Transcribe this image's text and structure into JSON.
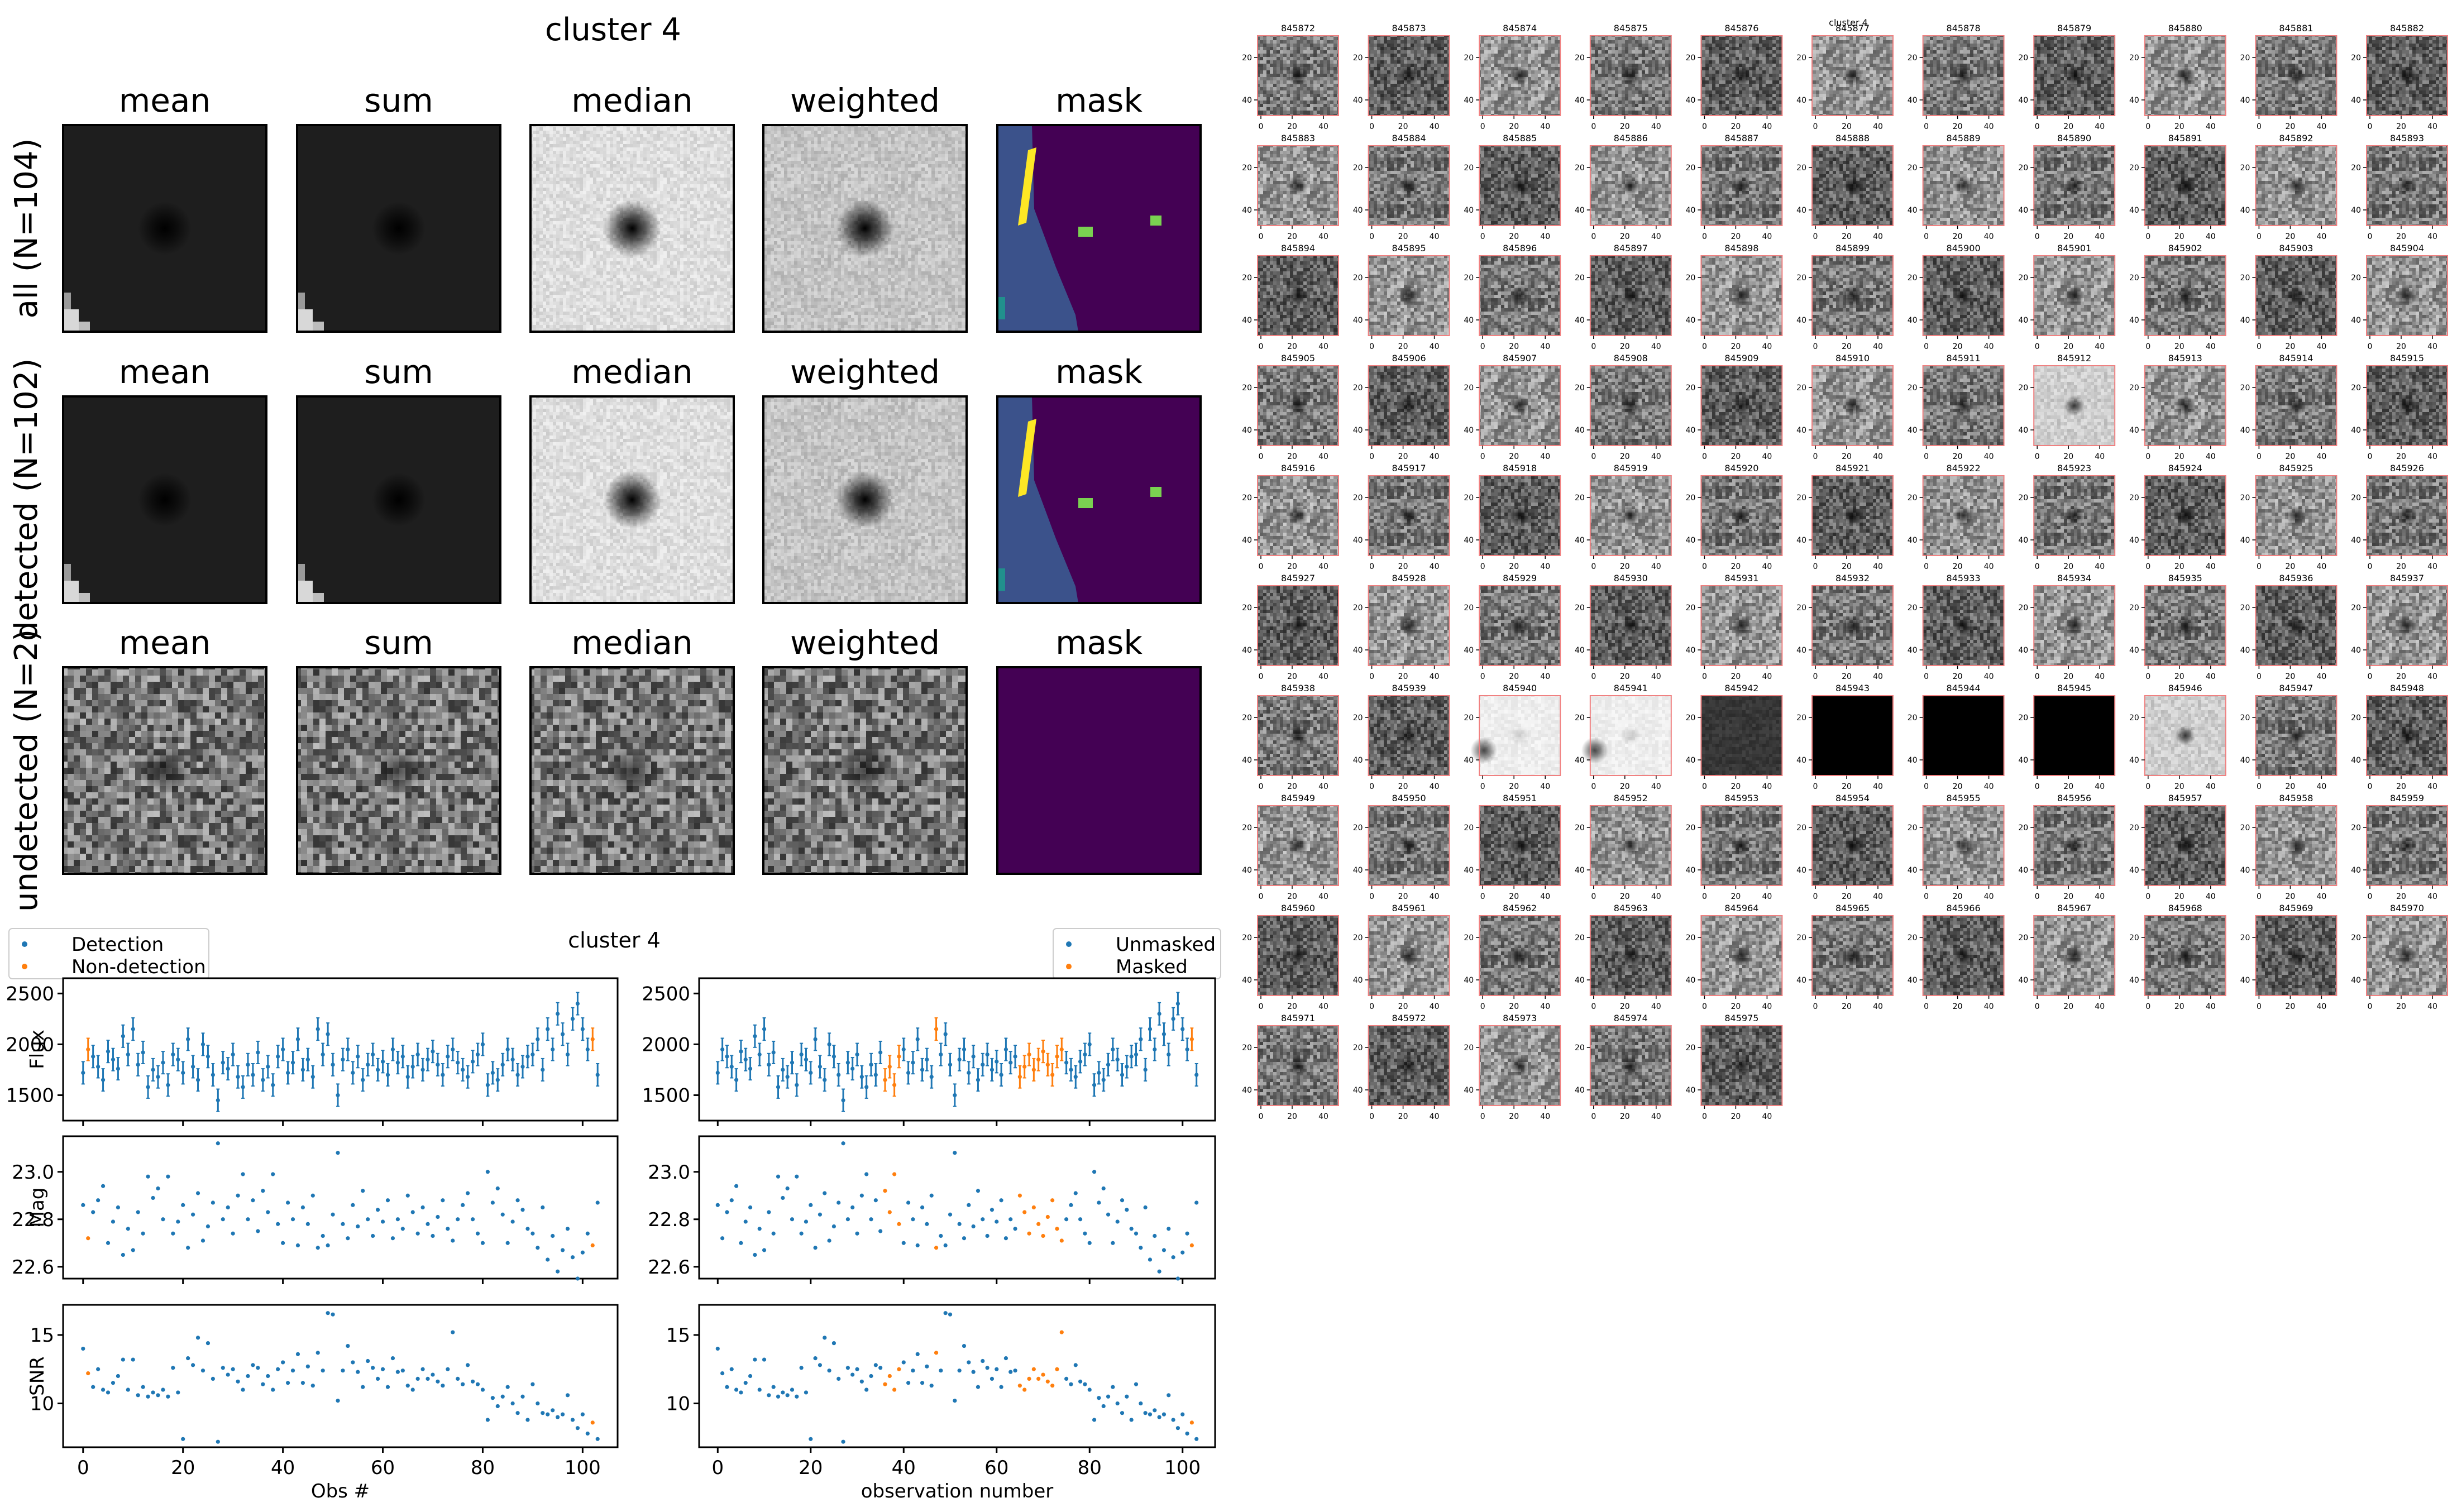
{
  "stamps": {
    "title": "cluster 4",
    "columns": [
      "mean",
      "sum",
      "median",
      "weighted",
      "mask"
    ],
    "rows": [
      {
        "label": "all (N=104)",
        "kinds": [
          "dark",
          "dark",
          "light",
          "mid",
          "mask"
        ]
      },
      {
        "label": "detected (N=102)",
        "kinds": [
          "dark",
          "dark",
          "light",
          "mid",
          "mask"
        ]
      },
      {
        "label": "undetected (N=2)",
        "kinds": [
          "noise",
          "noise",
          "noise",
          "noise",
          "maskempty"
        ]
      }
    ],
    "colors": {
      "mask_bg": "#440154",
      "mask_region": "#3b528b",
      "mask_edge": "#21908d",
      "mask_streak": "#fde725",
      "mask_spot": "#7ad151"
    }
  },
  "lightcurve": {
    "title": "cluster 4",
    "legend_left": [
      "Detection",
      "Non-detection"
    ],
    "legend_right": [
      "Unmasked",
      "Masked"
    ],
    "colors": {
      "primary": "#1f77b4",
      "secondary": "#ff7f0e"
    },
    "ylabels": [
      "Flux",
      "Mag",
      "SNR"
    ],
    "xlabel_left": "Obs #",
    "xlabel_right": "observation number",
    "yticks": {
      "flux": [
        "1500",
        "2000",
        "2500"
      ],
      "mag": [
        "22.6",
        "22.8",
        "23.0"
      ],
      "snr": [
        "10",
        "15"
      ]
    },
    "xticks": [
      "0",
      "20",
      "40",
      "60",
      "80",
      "100"
    ]
  },
  "chart_data": [
    {
      "type": "scatter",
      "title": "cluster 4",
      "x_range": [
        0,
        103
      ],
      "xlabel": "Obs #",
      "panels": [
        {
          "ylabel": "Flux",
          "ylim": [
            1250,
            2650
          ]
        },
        {
          "ylabel": "Mag",
          "ylim": [
            23.15,
            22.55
          ],
          "inverted": true
        },
        {
          "ylabel": "SNR",
          "ylim": [
            6.8,
            17.2
          ]
        }
      ],
      "series": [
        {
          "name": "Detection",
          "color": "#1f77b4",
          "x": "0-103 except 1 and 102"
        },
        {
          "name": "Non-detection",
          "color": "#ff7f0e",
          "x": [
            1,
            102
          ]
        }
      ],
      "flux": [
        1720,
        1950,
        1880,
        1780,
        1650,
        1930,
        1850,
        1760,
        2080,
        1900,
        2150,
        1800,
        1920,
        1580,
        1750,
        1680,
        1820,
        1600,
        1900,
        1850,
        1720,
        2050,
        1780,
        1650,
        2000,
        1880,
        1700,
        1450,
        1820,
        1760,
        1900,
        1680,
        1580,
        1800,
        1700,
        1920,
        1650,
        1780,
        1600,
        1880,
        1950,
        1720,
        1820,
        2050,
        1750,
        1850,
        1680,
        2150,
        1900,
        2100,
        1800,
        1500,
        1850,
        1950,
        1720,
        1880,
        1650,
        1800,
        1900,
        1750,
        1830,
        1700,
        1950,
        1820,
        1880,
        1680,
        1780,
        1900,
        1750,
        1850,
        1930,
        1800,
        1700,
        1880,
        1950,
        1820,
        1750,
        1680,
        1830,
        1900,
        2000,
        1600,
        1720,
        1650,
        1800,
        1950,
        1850,
        1700,
        1780,
        1880,
        1900,
        2050,
        1750,
        2150,
        1950,
        2300,
        2100,
        1900,
        2250,
        2400,
        2150,
        1950,
        2050,
        1700
      ],
      "mag": [
        22.86,
        22.72,
        22.83,
        22.88,
        22.94,
        22.7,
        22.79,
        22.85,
        22.65,
        22.76,
        22.67,
        22.83,
        22.74,
        22.98,
        22.89,
        22.93,
        22.8,
        22.98,
        22.74,
        22.79,
        22.86,
        22.68,
        22.82,
        22.91,
        22.71,
        22.77,
        22.87,
        23.12,
        22.8,
        22.85,
        22.74,
        22.9,
        22.99,
        22.8,
        22.88,
        22.75,
        22.92,
        22.83,
        22.99,
        22.78,
        22.7,
        22.87,
        22.8,
        22.69,
        22.85,
        22.78,
        22.9,
        22.68,
        22.73,
        22.69,
        22.82,
        23.08,
        22.78,
        22.72,
        22.86,
        22.77,
        22.92,
        22.8,
        22.73,
        22.84,
        22.79,
        22.88,
        22.72,
        22.8,
        22.76,
        22.9,
        22.83,
        22.74,
        22.85,
        22.78,
        22.73,
        22.81,
        22.88,
        22.76,
        22.71,
        22.8,
        22.86,
        22.91,
        22.8,
        22.74,
        22.7,
        23.0,
        22.87,
        22.93,
        22.82,
        22.7,
        22.79,
        22.88,
        22.84,
        22.76,
        22.74,
        22.68,
        22.85,
        22.63,
        22.73,
        22.58,
        22.67,
        22.76,
        22.64,
        22.55,
        22.66,
        22.74,
        22.69,
        22.87
      ],
      "snr": [
        14.0,
        12.2,
        11.2,
        12.5,
        11.0,
        10.8,
        11.5,
        12.0,
        13.2,
        11.0,
        13.2,
        10.6,
        11.2,
        10.5,
        10.8,
        10.6,
        11.0,
        10.5,
        12.6,
        10.8,
        7.4,
        13.3,
        12.8,
        14.8,
        12.4,
        14.4,
        11.8,
        7.2,
        12.6,
        12.1,
        12.5,
        11.6,
        11.0,
        12.0,
        12.8,
        12.6,
        11.4,
        12.0,
        11.0,
        12.5,
        13.0,
        11.5,
        12.4,
        13.6,
        11.5,
        12.7,
        11.3,
        13.7,
        12.4,
        16.6,
        16.5,
        10.2,
        12.4,
        14.2,
        13.0,
        12.3,
        11.2,
        13.1,
        12.6,
        11.8,
        12.5,
        11.2,
        13.3,
        12.3,
        12.4,
        11.3,
        11.0,
        11.8,
        12.5,
        11.8,
        12.1,
        11.6,
        11.3,
        12.5,
        15.2,
        11.8,
        11.4,
        12.8,
        11.6,
        11.4,
        11.0,
        8.8,
        10.4,
        9.8,
        10.5,
        11.2,
        10.0,
        9.3,
        10.5,
        8.8,
        11.4,
        10.0,
        9.3,
        9.2,
        9.5,
        9.0,
        9.2,
        10.6,
        8.8,
        8.2,
        9.2,
        7.8,
        8.6,
        7.4
      ]
    },
    {
      "type": "scatter",
      "title": "cluster 4",
      "x_range": [
        0,
        103
      ],
      "xlabel": "observation number",
      "series": [
        {
          "name": "Unmasked",
          "color": "#1f77b4"
        },
        {
          "name": "Masked",
          "color": "#ff7f0e",
          "x": [
            36,
            37,
            38,
            39,
            47,
            65,
            66,
            67,
            68,
            69,
            70,
            71,
            72,
            73,
            74,
            102
          ]
        }
      ],
      "note_values": "same flux/mag/snr values as panel group 1"
    }
  ],
  "thumbs": {
    "title": "cluster 4",
    "ids": [
      "845872",
      "845873",
      "845874",
      "845875",
      "845876",
      "845877",
      "845878",
      "845879",
      "845880",
      "845881",
      "845882",
      "845883",
      "845884",
      "845885",
      "845886",
      "845887",
      "845888",
      "845889",
      "845890",
      "845891",
      "845892",
      "845893",
      "845894",
      "845895",
      "845896",
      "845897",
      "845898",
      "845899",
      "845900",
      "845901",
      "845902",
      "845903",
      "845904",
      "845905",
      "845906",
      "845907",
      "845908",
      "845909",
      "845910",
      "845911",
      "845912",
      "845913",
      "845914",
      "845915",
      "845916",
      "845917",
      "845918",
      "845919",
      "845920",
      "845921",
      "845922",
      "845923",
      "845924",
      "845925",
      "845926",
      "845927",
      "845928",
      "845929",
      "845930",
      "845931",
      "845932",
      "845933",
      "845934",
      "845935",
      "845936",
      "845937",
      "845938",
      "845939",
      "845940",
      "845941",
      "845942",
      "845943",
      "845944",
      "845945",
      "845946",
      "845947",
      "845948",
      "845949",
      "845950",
      "845951",
      "845952",
      "845953",
      "845954",
      "845955",
      "845956",
      "845957",
      "845958",
      "845959",
      "845960",
      "845961",
      "845962",
      "845963",
      "845964",
      "845965",
      "845966",
      "845967",
      "845968",
      "845969",
      "845970",
      "845971",
      "845972",
      "845973",
      "845974",
      "845975"
    ],
    "special": {
      "845912": "faint",
      "845940": "bright",
      "845941": "bright",
      "845942": "dim",
      "845943": "black",
      "845944": "black",
      "845945": "black",
      "845946": "faint"
    },
    "yticks": [
      "20",
      "40"
    ],
    "xticks": [
      "0",
      "20",
      "40"
    ],
    "border_color": "#f08080"
  }
}
